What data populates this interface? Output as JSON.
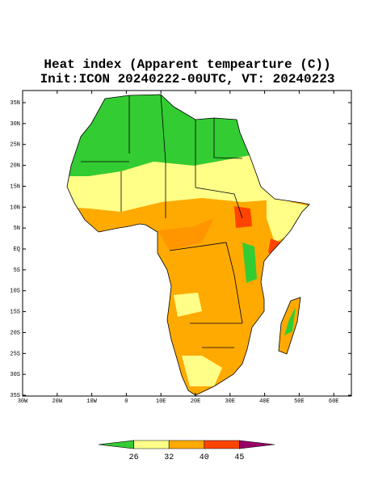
{
  "title": "Heat index (Apparent tempearture (C))",
  "subtitle": "Init:ICON 20240222-00UTC, VT: 20240223",
  "lat_labels": [
    "35N",
    "30N",
    "25N",
    "20N",
    "15N",
    "10N",
    "5N",
    "EQ",
    "5S",
    "10S",
    "15S",
    "20S",
    "25S",
    "30S",
    "35S"
  ],
  "lon_labels": [
    "30W",
    "20W",
    "10W",
    "0",
    "10E",
    "20E",
    "30E",
    "40E",
    "50E",
    "60E"
  ],
  "colorbar": {
    "ticks": [
      "26",
      "32",
      "40",
      "45"
    ],
    "colors": [
      "#33cc33",
      "#ffff88",
      "#ffaa00",
      "#ff4400",
      "#990066"
    ]
  }
}
